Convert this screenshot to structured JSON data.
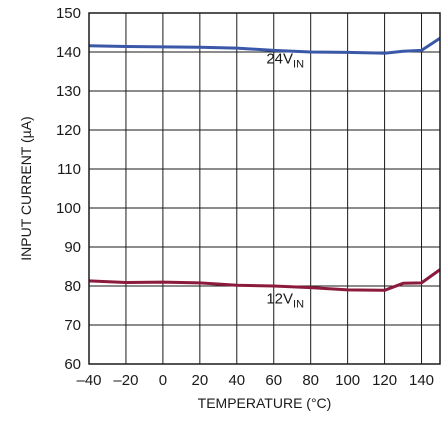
{
  "chart_data": {
    "type": "line",
    "title": "",
    "xlabel": "TEMPERATURE (°C)",
    "ylabel": "INPUT CURRENT (µA)",
    "xlim": [
      -40,
      150
    ],
    "ylim": [
      60,
      150
    ],
    "xticks": [
      -40,
      -20,
      0,
      20,
      40,
      60,
      80,
      100,
      120,
      140
    ],
    "xtick_labels": [
      "–40",
      "–20",
      "0",
      "20",
      "40",
      "60",
      "80",
      "100",
      "120",
      "140"
    ],
    "yticks": [
      60,
      70,
      80,
      90,
      100,
      110,
      120,
      130,
      140,
      150
    ],
    "grid": true,
    "series": [
      {
        "name": "24VIN",
        "label_main": "24V",
        "label_sub": "IN",
        "color": "#3b58a8",
        "x": [
          -40,
          -20,
          0,
          20,
          40,
          60,
          80,
          100,
          120,
          130,
          140,
          150
        ],
        "y": [
          141.6,
          141.4,
          141.3,
          141.2,
          141.0,
          140.4,
          140.0,
          139.9,
          139.7,
          140.2,
          140.4,
          143.5
        ]
      },
      {
        "name": "12VIN",
        "label_main": "12V",
        "label_sub": "IN",
        "color": "#8b1a3c",
        "x": [
          -40,
          -20,
          0,
          20,
          40,
          60,
          80,
          100,
          120,
          130,
          140,
          150
        ],
        "y": [
          81.3,
          80.9,
          81.0,
          80.8,
          80.2,
          80.0,
          79.6,
          79.0,
          78.9,
          80.7,
          80.8,
          84.2
        ]
      }
    ]
  }
}
